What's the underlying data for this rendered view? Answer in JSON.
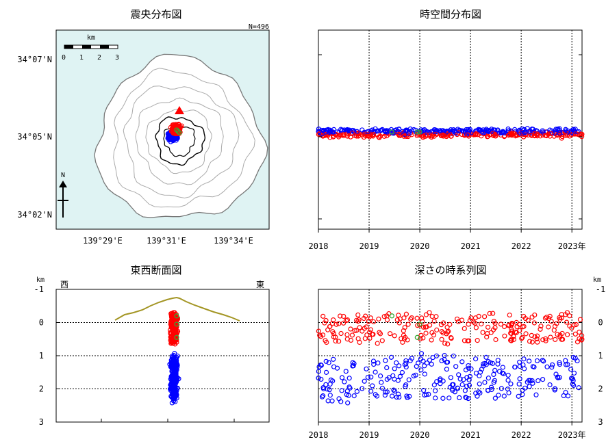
{
  "chart_data": [
    {
      "id": "epicenter",
      "type": "scatter",
      "title": "震央分布図",
      "count_label": "N=496",
      "scale_unit": "km",
      "scale_ticks": [
        "0",
        "1",
        "2",
        "3"
      ],
      "north_label": "N",
      "lat_labels": [
        "34°07'N",
        "34°05'N",
        "34°02'N"
      ],
      "lon_labels": [
        "139°29'E",
        "139°31'E",
        "139°34'E"
      ],
      "colors": {
        "shallow": "#ff0000",
        "deep": "#0000ff",
        "recent": "#33aa33",
        "sea": "#dff3f3",
        "summit": "#ff0000"
      }
    },
    {
      "id": "spacetime",
      "type": "scatter",
      "title": "時空間分布図",
      "x_ticks": [
        "2018",
        "2019",
        "2020",
        "2021",
        "2022",
        "2023"
      ],
      "x_unit": "年",
      "xlim": [
        2018.0,
        2023.2
      ]
    },
    {
      "id": "ew_section",
      "type": "scatter",
      "title": "東西断面図",
      "y_unit": "km",
      "west_label": "西",
      "east_label": "東",
      "y_ticks": [
        "-1",
        "0",
        "1",
        "2",
        "3"
      ],
      "ylim": [
        -1,
        3
      ]
    },
    {
      "id": "depth_time",
      "type": "scatter",
      "title": "深さの時系列図",
      "y_unit": "km",
      "y_ticks": [
        "-1",
        "0",
        "1",
        "2",
        "3"
      ],
      "x_ticks": [
        "2018",
        "2019",
        "2020",
        "2021",
        "2022",
        "2023"
      ],
      "x_unit": "年",
      "xlim": [
        2018.0,
        2023.2
      ],
      "ylim": [
        -1,
        3
      ]
    }
  ]
}
